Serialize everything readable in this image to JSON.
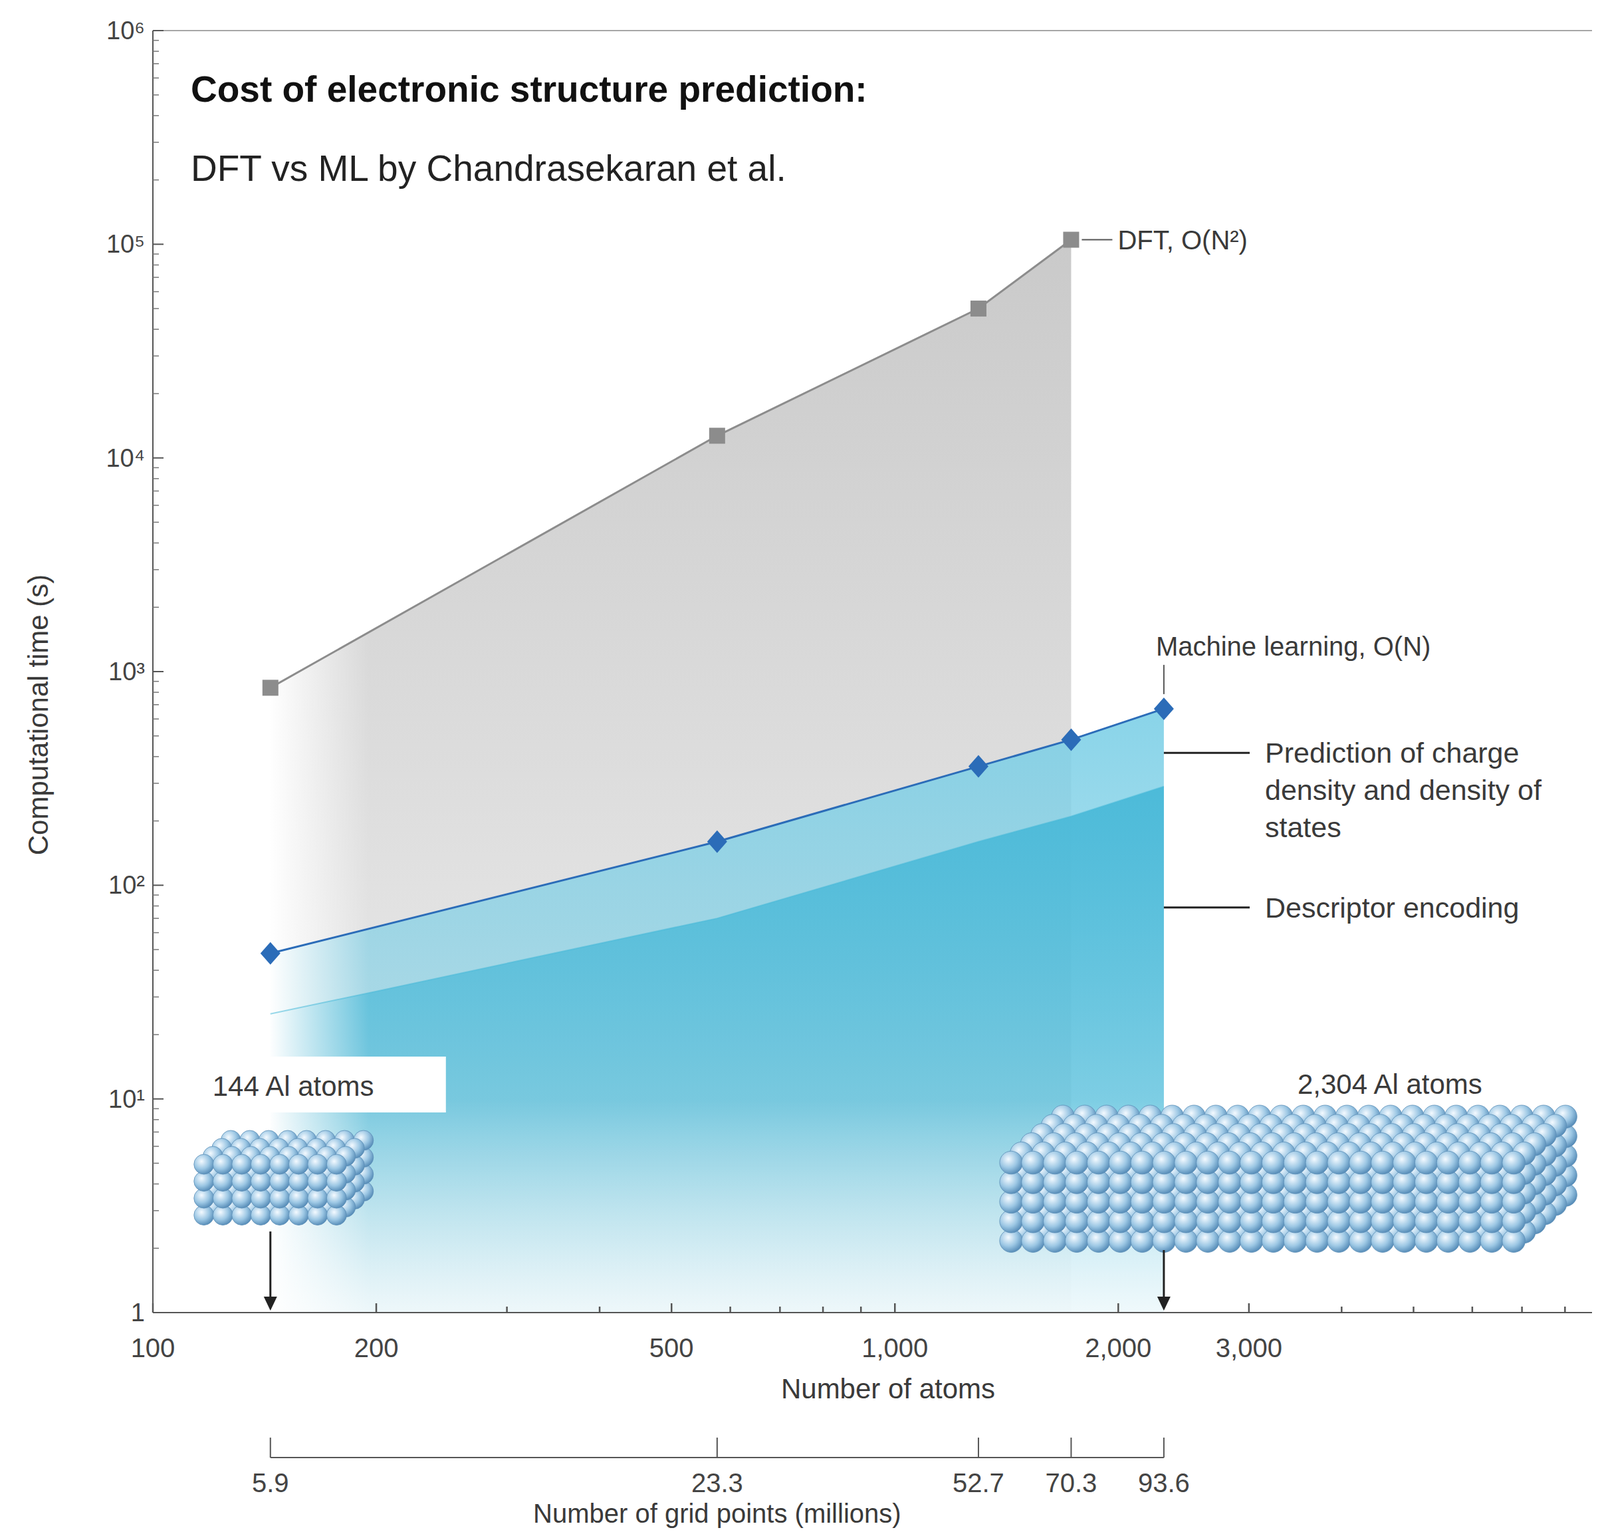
{
  "chart_data": {
    "type": "line",
    "title": "Cost of electronic structure prediction:",
    "subtitle": "DFT vs ML by Chandrasekaran et al.",
    "x_label": "Number of atoms",
    "y_label": "Computational time (s)",
    "x": [
      144,
      576,
      1296,
      1728,
      2304
    ],
    "series": [
      {
        "name": "DFT, O(N²)",
        "color": "#8c8c8c",
        "marker": "square",
        "values": [
          840,
          12700,
          50000,
          105000,
          null
        ]
      },
      {
        "name": "Machine learning, O(N)",
        "color": "#2b6cb8",
        "marker": "diamond",
        "values": [
          48,
          160,
          360,
          480,
          670
        ]
      },
      {
        "name": "Descriptor encoding",
        "color": "#49b9d8",
        "type": "area",
        "marker": "none",
        "values": [
          25,
          70,
          160,
          210,
          290
        ]
      }
    ],
    "annotations": [
      {
        "text": "Prediction of charge density and density of states"
      },
      {
        "text": "144 Al atoms",
        "x": 144
      },
      {
        "text": "2,304 Al atoms",
        "x": 2304
      }
    ],
    "grid_points": {
      "label": "Number of grid points (millions)",
      "values": [
        5.9,
        23.3,
        52.7,
        70.3,
        93.6
      ]
    },
    "log": true,
    "grid": false,
    "xlim": [
      100,
      8700
    ],
    "xticks": [
      100,
      200,
      500,
      {
        "value": 1000,
        "label": "1,000"
      },
      {
        "value": 2000,
        "label": "2,000"
      },
      {
        "value": 3000,
        "label": "3,000"
      }
    ],
    "ylim": [
      1,
      1000000
    ],
    "yticks": [
      1,
      {
        "value": 10,
        "label": "10¹"
      },
      {
        "value": 100,
        "label": "10²"
      },
      {
        "value": 1000,
        "label": "10³"
      },
      {
        "value": 10000,
        "label": "10⁴"
      },
      {
        "value": 100000,
        "label": "10⁵"
      },
      {
        "value": 1000000,
        "label": "10⁶"
      }
    ]
  }
}
